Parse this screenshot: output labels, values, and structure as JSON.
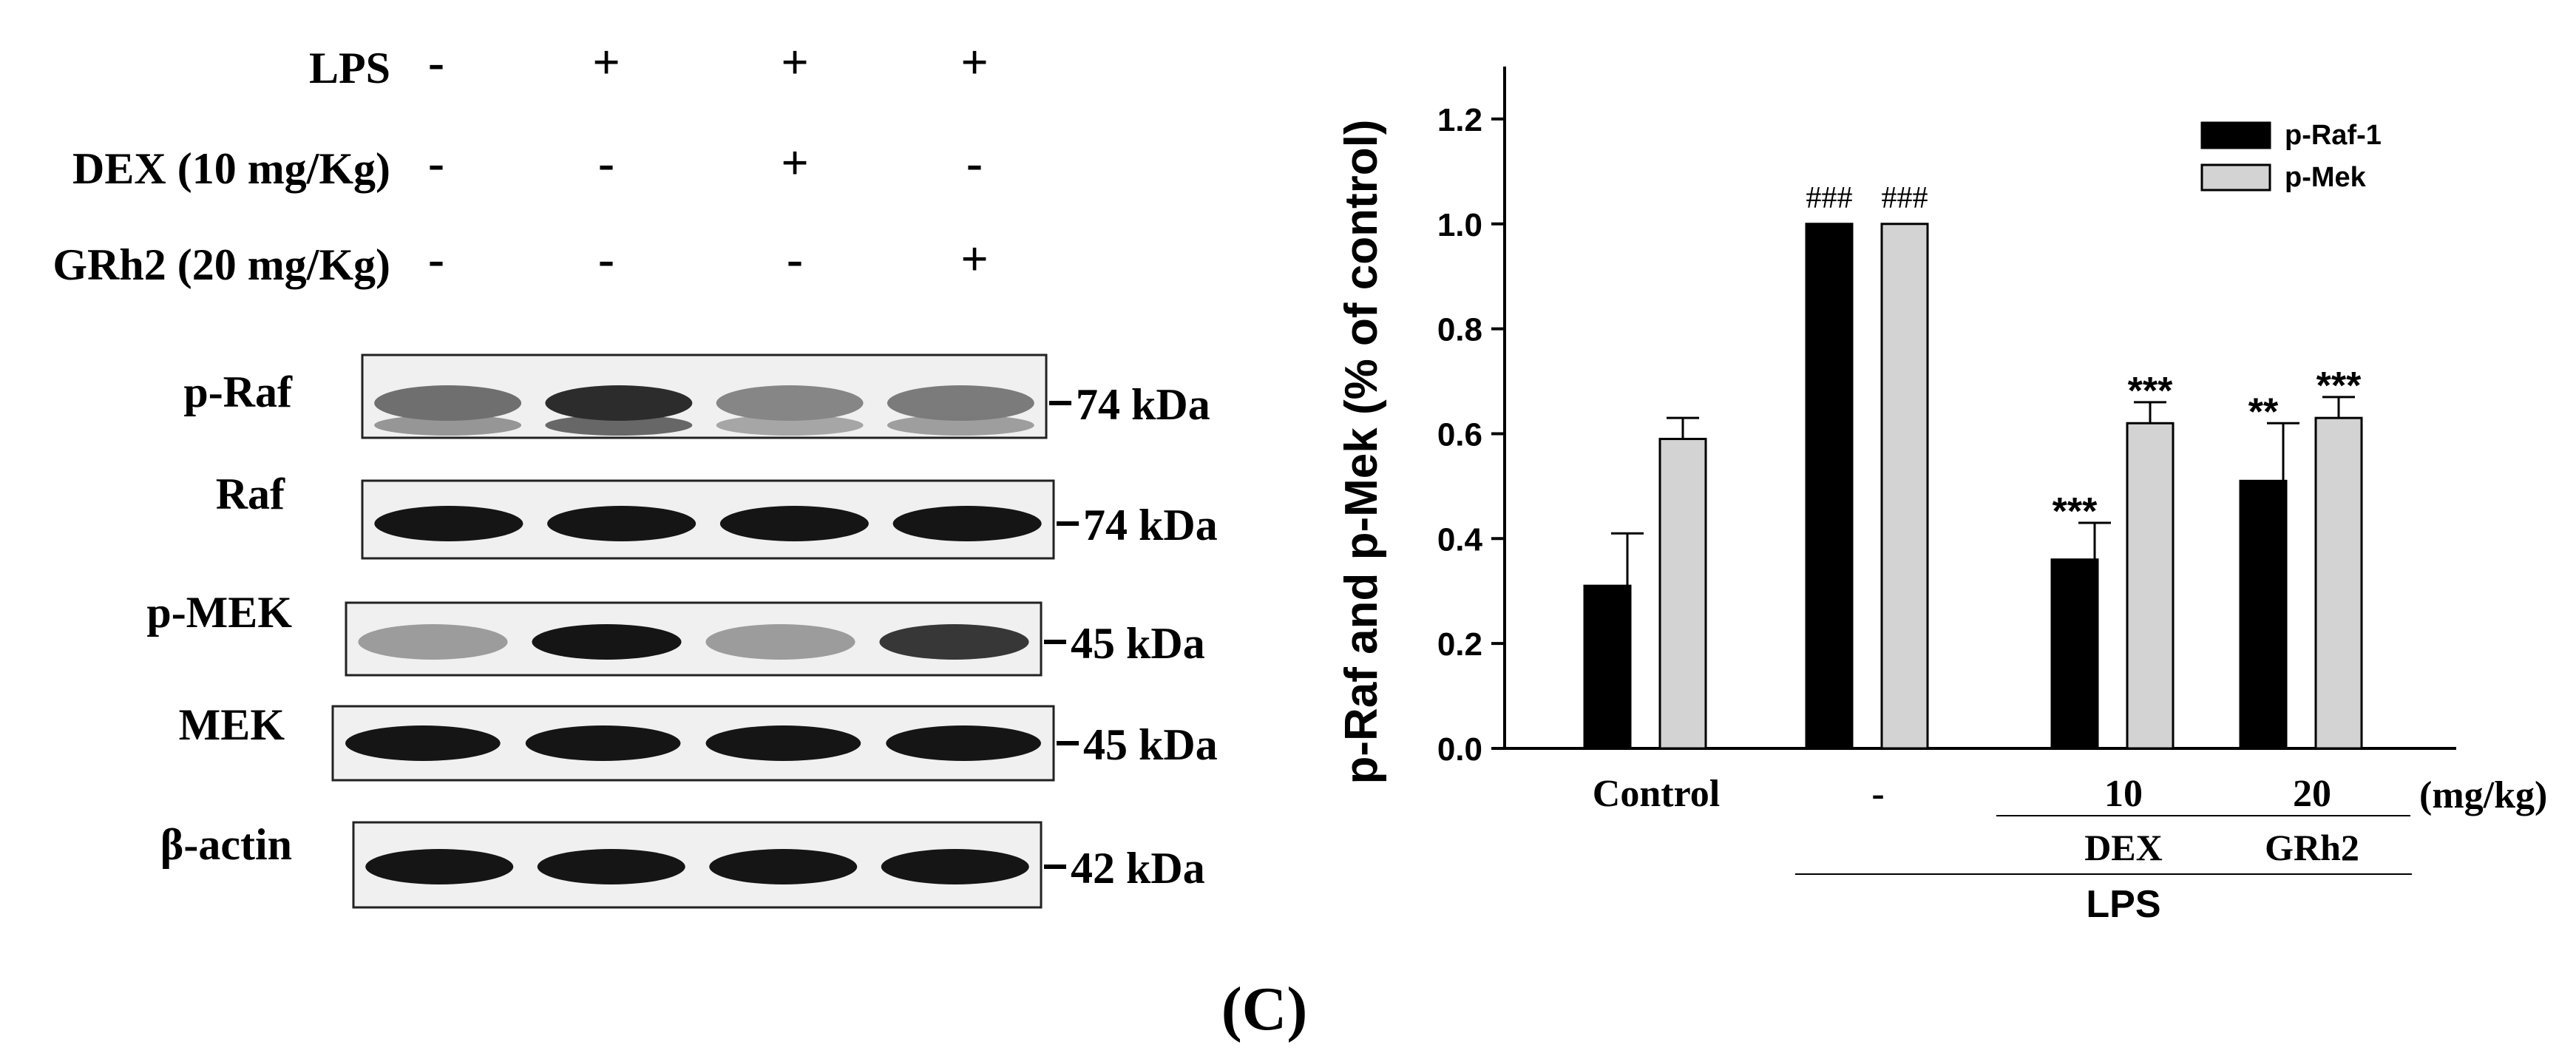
{
  "figure_label": "(C)",
  "treatment_table": {
    "rows": [
      {
        "label": "LPS",
        "signs": [
          "-",
          "+",
          "+",
          "+"
        ]
      },
      {
        "label": "DEX (10 mg/Kg)",
        "signs": [
          "-",
          "-",
          "+",
          "-"
        ]
      },
      {
        "label": "GRh2 (20 mg/Kg)",
        "signs": [
          "-",
          "-",
          "-",
          "+"
        ]
      }
    ]
  },
  "blots": [
    {
      "label": "p-Raf",
      "size": "74 kDa",
      "intensity": [
        0.55,
        0.85,
        0.45,
        0.5
      ],
      "double_band": true
    },
    {
      "label": "Raf",
      "size": "74 kDa",
      "intensity": [
        0.95,
        0.95,
        0.95,
        0.95
      ],
      "double_band": false
    },
    {
      "label": "p-MEK",
      "size": "45 kDa",
      "intensity": [
        0.35,
        0.95,
        0.35,
        0.8
      ],
      "double_band": false
    },
    {
      "label": "MEK",
      "size": "45 kDa",
      "intensity": [
        0.95,
        0.95,
        0.95,
        0.95
      ],
      "double_band": false
    },
    {
      "label": "β-actin",
      "size": "42 kDa",
      "intensity": [
        0.95,
        0.95,
        0.95,
        0.95
      ],
      "double_band": false
    }
  ],
  "chart_data": {
    "type": "bar",
    "categories": [
      "Control",
      "-",
      "10",
      "20"
    ],
    "series": [
      {
        "name": "p-Raf-1",
        "color": "#000000",
        "values": [
          0.31,
          1.0,
          0.36,
          0.51
        ],
        "errors": [
          0.1,
          0.0,
          0.07,
          0.11
        ],
        "annotations": [
          "",
          "###",
          "***",
          "**"
        ]
      },
      {
        "name": "p-Mek",
        "color": "#d3d3d3",
        "values": [
          0.59,
          1.0,
          0.62,
          0.63
        ],
        "errors": [
          0.04,
          0.0,
          0.04,
          0.04
        ],
        "annotations": [
          "",
          "###",
          "***",
          "***"
        ]
      }
    ],
    "ylabel": "p-Raf and p-Mek (% of control)",
    "ylim": [
      0,
      1.3
    ],
    "yticks": [
      0.0,
      0.2,
      0.4,
      0.6,
      0.8,
      1.0,
      1.2
    ],
    "unit_label": "(mg/kg)",
    "group_labels": {
      "sub": [
        "DEX",
        "GRh2"
      ],
      "main": "LPS"
    },
    "legend_position": "top-right",
    "grid": false
  }
}
